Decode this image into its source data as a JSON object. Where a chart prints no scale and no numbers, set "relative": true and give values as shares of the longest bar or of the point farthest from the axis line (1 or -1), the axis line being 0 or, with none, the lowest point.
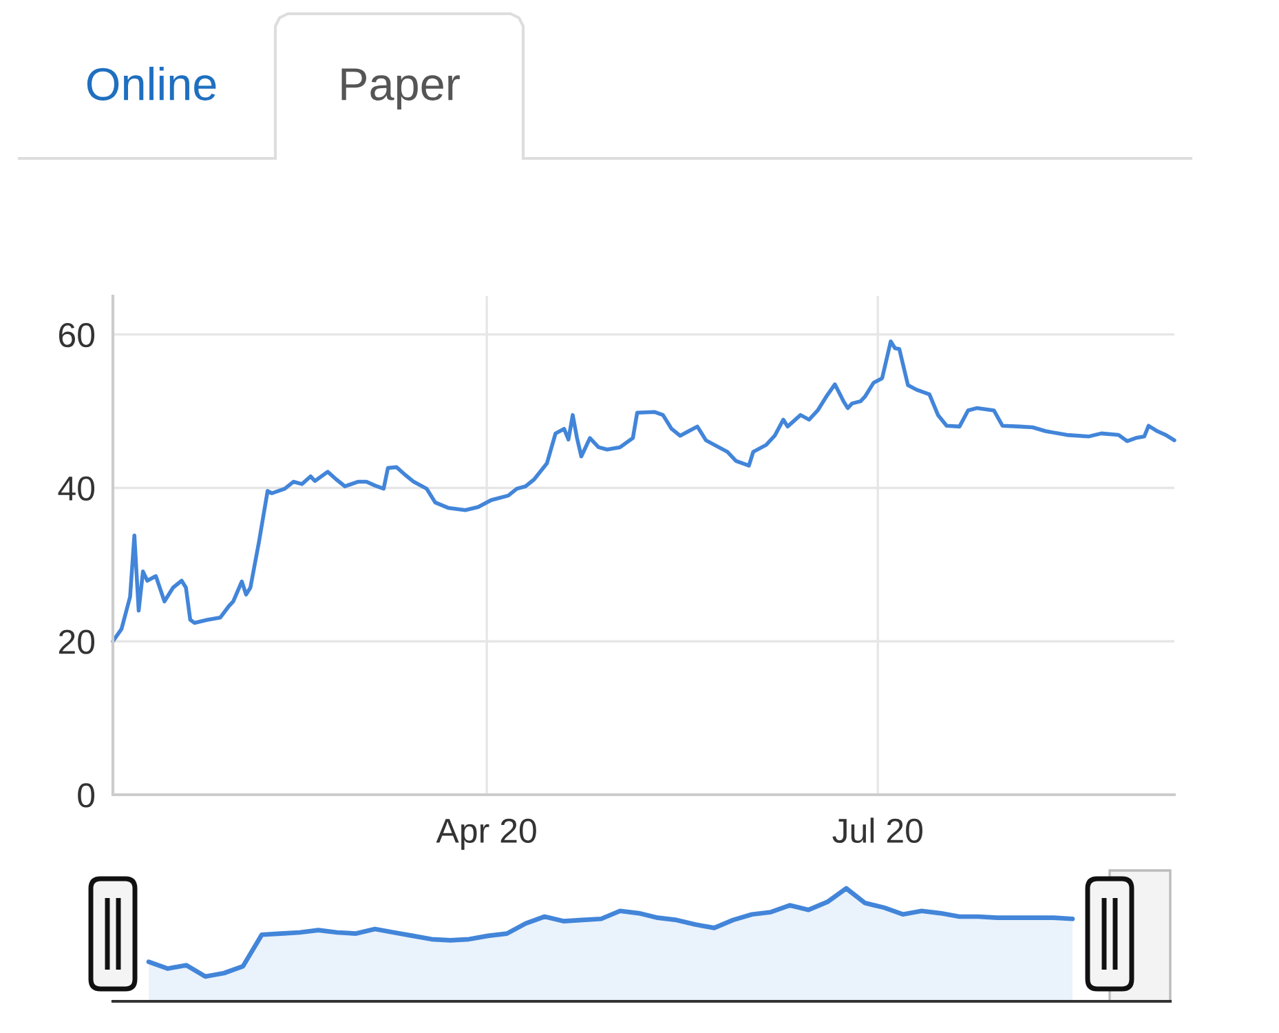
{
  "chart_data": [
    {
      "type": "line",
      "x": [
        "2020-01-05",
        "2020-01-07",
        "2020-01-09",
        "2020-01-10",
        "2020-01-11",
        "2020-01-12",
        "2020-01-13",
        "2020-01-15",
        "2020-01-17",
        "2020-01-19",
        "2020-01-21",
        "2020-01-22",
        "2020-01-23",
        "2020-01-24",
        "2020-01-27",
        "2020-01-30",
        "2020-02-01",
        "2020-02-02",
        "2020-02-04",
        "2020-02-05",
        "2020-02-06",
        "2020-02-08",
        "2020-02-10",
        "2020-02-11",
        "2020-02-14",
        "2020-02-16",
        "2020-02-18",
        "2020-02-20",
        "2020-02-21",
        "2020-02-24",
        "2020-02-26",
        "2020-02-28",
        "2020-03-02",
        "2020-03-04",
        "2020-03-06",
        "2020-03-08",
        "2020-03-09",
        "2020-03-11",
        "2020-03-13",
        "2020-03-15",
        "2020-03-18",
        "2020-03-20",
        "2020-03-23",
        "2020-03-27",
        "2020-03-30",
        "2020-04-02",
        "2020-04-06",
        "2020-04-08",
        "2020-04-10",
        "2020-04-12",
        "2020-04-15",
        "2020-04-17",
        "2020-04-19",
        "2020-04-20",
        "2020-04-21",
        "2020-04-22",
        "2020-04-23",
        "2020-04-25",
        "2020-04-27",
        "2020-04-29",
        "2020-05-02",
        "2020-05-05",
        "2020-05-06",
        "2020-05-10",
        "2020-05-12",
        "2020-05-14",
        "2020-05-16",
        "2020-05-18",
        "2020-05-20",
        "2020-05-22",
        "2020-05-24",
        "2020-05-27",
        "2020-05-29",
        "2020-06-01",
        "2020-06-02",
        "2020-06-05",
        "2020-06-07",
        "2020-06-09",
        "2020-06-10",
        "2020-06-13",
        "2020-06-15",
        "2020-06-17",
        "2020-06-19",
        "2020-06-21",
        "2020-06-23",
        "2020-06-24",
        "2020-06-25",
        "2020-06-27",
        "2020-06-28",
        "2020-06-30",
        "2020-07-02",
        "2020-07-04",
        "2020-07-05",
        "2020-07-06",
        "2020-07-08",
        "2020-07-10",
        "2020-07-13",
        "2020-07-15",
        "2020-07-17",
        "2020-07-20",
        "2020-07-22",
        "2020-07-24",
        "2020-07-28",
        "2020-07-30",
        "2020-08-03",
        "2020-08-06",
        "2020-08-09",
        "2020-08-14",
        "2020-08-19",
        "2020-08-22",
        "2020-08-26",
        "2020-08-28",
        "2020-08-30",
        "2020-09-01",
        "2020-09-02",
        "2020-09-04",
        "2020-09-06",
        "2020-09-08"
      ],
      "values": [
        20.0,
        21.6,
        25.8,
        33.8,
        24.0,
        29.1,
        27.9,
        28.5,
        25.2,
        27.0,
        27.9,
        27.0,
        22.8,
        22.4,
        22.8,
        23.1,
        24.6,
        25.2,
        27.8,
        26.1,
        27.0,
        33.0,
        39.6,
        39.3,
        39.9,
        40.8,
        40.5,
        41.5,
        40.9,
        42.1,
        41.1,
        40.2,
        40.8,
        40.8,
        40.3,
        39.9,
        42.6,
        42.7,
        41.7,
        40.8,
        39.9,
        38.1,
        37.4,
        37.1,
        37.5,
        38.4,
        39.0,
        39.9,
        40.2,
        41.1,
        43.2,
        47.1,
        47.7,
        46.3,
        49.5,
        46.5,
        44.1,
        46.5,
        45.3,
        45.0,
        45.3,
        46.5,
        49.8,
        49.9,
        49.5,
        47.7,
        46.8,
        47.4,
        48.0,
        46.2,
        45.6,
        44.7,
        43.5,
        42.9,
        44.7,
        45.6,
        46.8,
        48.9,
        48.0,
        49.5,
        48.9,
        50.1,
        51.9,
        53.5,
        51.3,
        50.4,
        51.0,
        51.3,
        51.9,
        53.7,
        54.3,
        59.1,
        58.2,
        58.1,
        53.4,
        52.8,
        52.2,
        49.5,
        48.1,
        48.0,
        50.1,
        50.4,
        50.1,
        48.1,
        48.0,
        47.9,
        47.4,
        46.9,
        46.7,
        47.1,
        46.9,
        46.1,
        46.5,
        46.7,
        48.1,
        47.4,
        46.9,
        46.2
      ],
      "color": "#4285d9",
      "xlim": [
        "2020-01-05",
        "2020-09-08"
      ],
      "xticks": [
        {
          "value": "2020-04-01",
          "label": "Apr 20"
        },
        {
          "value": "2020-07-01",
          "label": "Jul 20"
        }
      ],
      "ylim": [
        0,
        65
      ],
      "yticks": [
        0,
        20,
        40,
        60
      ],
      "grid": true,
      "annotations": [
        "Online",
        "Paper"
      ]
    },
    {
      "type": "area",
      "relative": true,
      "categories": [
        null,
        null,
        null,
        null,
        null,
        null,
        null,
        null,
        null,
        null,
        null,
        null,
        null,
        null,
        null,
        null,
        null,
        null,
        null,
        null,
        null,
        null,
        null,
        null,
        null,
        null,
        null,
        null,
        null,
        null,
        null,
        null,
        null,
        null,
        null,
        null,
        null,
        null,
        null,
        null,
        null,
        null,
        null,
        null,
        null,
        null,
        null,
        null,
        null,
        null
      ],
      "values": [
        0.35,
        0.29,
        0.32,
        0.22,
        0.25,
        0.31,
        0.59,
        0.6,
        0.61,
        0.63,
        0.61,
        0.6,
        0.64,
        0.61,
        0.58,
        0.55,
        0.54,
        0.55,
        0.58,
        0.6,
        0.69,
        0.75,
        0.71,
        0.72,
        0.73,
        0.8,
        0.78,
        0.74,
        0.72,
        0.68,
        0.65,
        0.72,
        0.77,
        0.79,
        0.85,
        0.81,
        0.88,
        1.0,
        0.87,
        0.83,
        0.77,
        0.8,
        0.78,
        0.75,
        0.75,
        0.74,
        0.74,
        0.74,
        0.74,
        0.73
      ],
      "color": "#4285d9"
    }
  ]
}
